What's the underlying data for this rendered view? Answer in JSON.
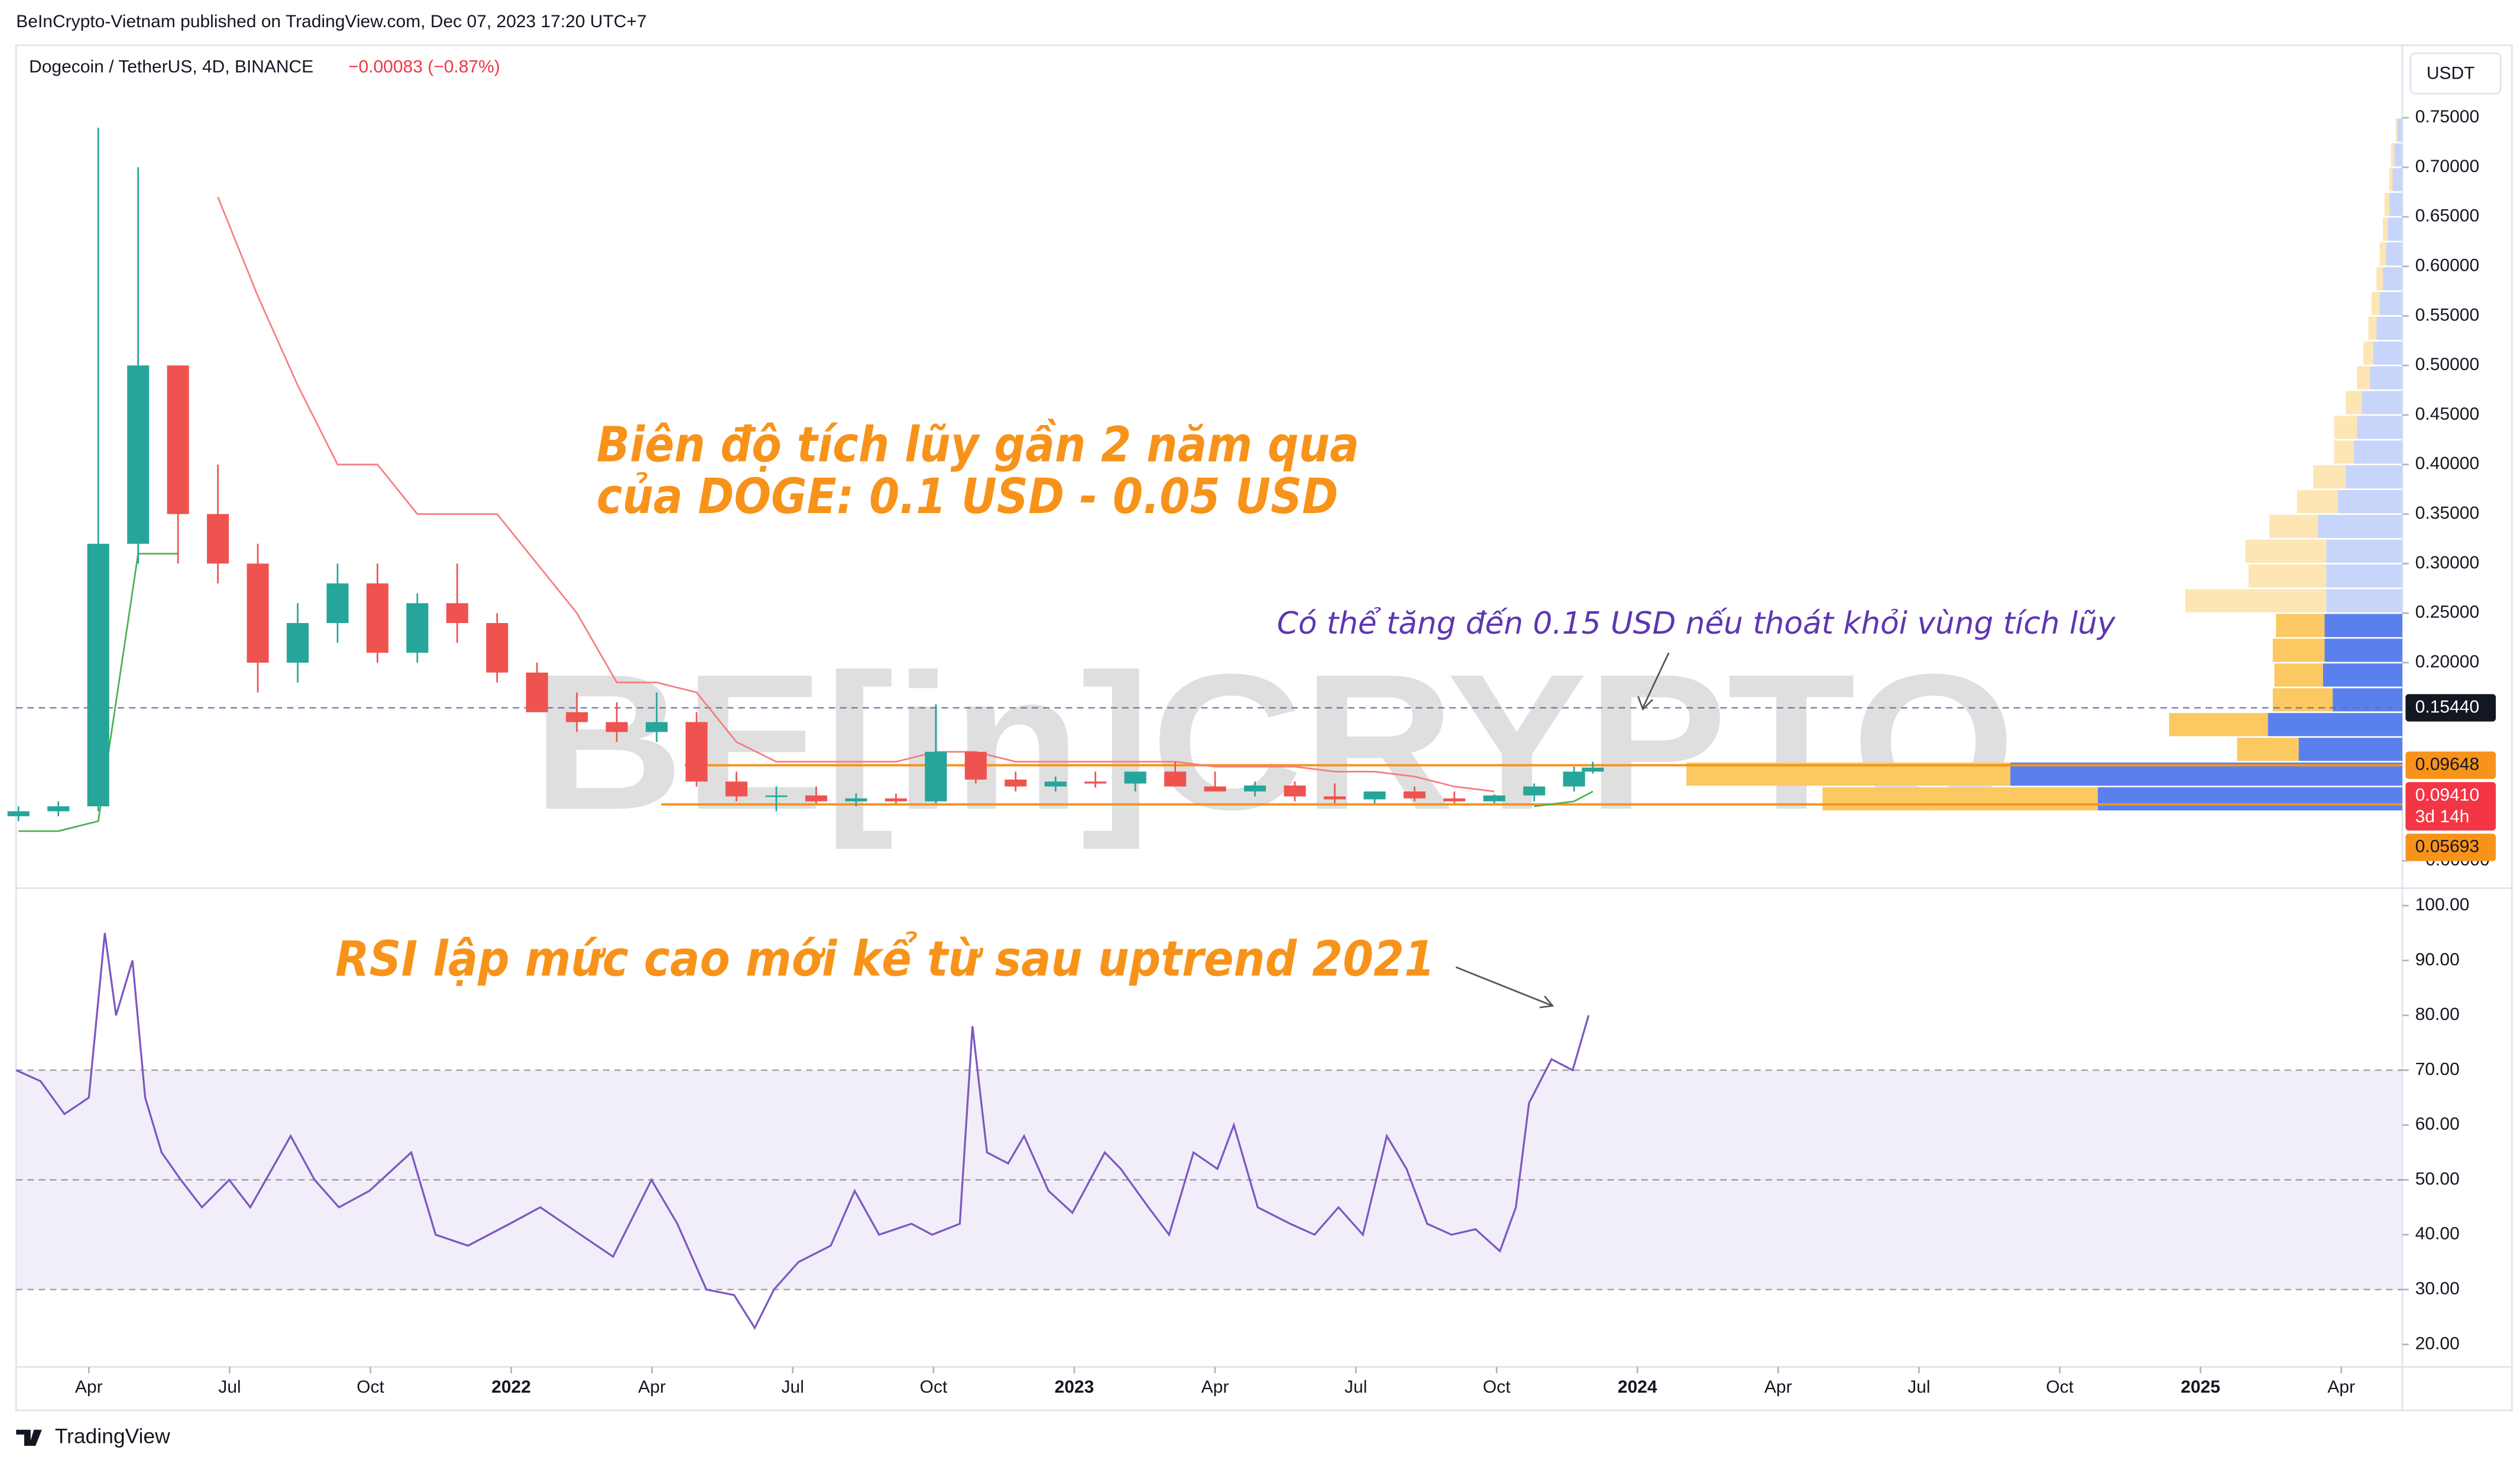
{
  "header": {
    "published": "BeInCrypto-Vietnam published on TradingView.com, Dec 07, 2023 17:20 UTC+7",
    "symbol": "Dogecoin / TetherUS, 4D, BINANCE",
    "change": "−0.00083 (−0.87%)",
    "currency": "USDT",
    "footer": "TradingView",
    "watermark": "BE[in]CRYPTO"
  },
  "annotations": [
    "Biên độ tích lũy gần 2 năm qua",
    "của DOGE: 0.1 USD - 0.05 USD",
    "Có thể tăng đến 0.15 USD nếu thoát khỏi vùng tích lũy",
    "RSI lập mức cao mới kể từ sau uptrend 2021"
  ],
  "chart_data": [
    {
      "type": "candlestick",
      "x": [
        1.5,
        2.35,
        3.2,
        4.05,
        4.9,
        5.75,
        6.6,
        7.45,
        8.3,
        9.15,
        10,
        10.85,
        11.7,
        12.55,
        13.4,
        14.25,
        15.1,
        15.95,
        16.8,
        17.65,
        18.5,
        19.35,
        20.2,
        21.05,
        21.9,
        22.75,
        23.6,
        24.45,
        25.3,
        26.15,
        27,
        27.85,
        28.7,
        29.55,
        30.4,
        31.25,
        32.1,
        32.95,
        33.8,
        34.65,
        35.05
      ],
      "open": [
        0.045,
        0.05,
        0.055,
        0.32,
        0.5,
        0.35,
        0.3,
        0.2,
        0.24,
        0.28,
        0.21,
        0.26,
        0.24,
        0.19,
        0.15,
        0.14,
        0.13,
        0.14,
        0.08,
        0.065,
        0.066,
        0.06,
        0.063,
        0.06,
        0.11,
        0.082,
        0.075,
        0.08,
        0.078,
        0.09,
        0.075,
        0.07,
        0.076,
        0.065,
        0.062,
        0.07,
        0.063,
        0.06,
        0.066,
        0.075,
        0.09
      ],
      "high": [
        0.055,
        0.06,
        0.74,
        0.7,
        0.5,
        0.4,
        0.32,
        0.26,
        0.3,
        0.3,
        0.27,
        0.3,
        0.25,
        0.2,
        0.17,
        0.16,
        0.17,
        0.15,
        0.09,
        0.075,
        0.075,
        0.068,
        0.068,
        0.158,
        0.11,
        0.09,
        0.085,
        0.09,
        0.09,
        0.1,
        0.09,
        0.08,
        0.08,
        0.078,
        0.07,
        0.075,
        0.07,
        0.067,
        0.078,
        0.095,
        0.1
      ],
      "low": [
        0.04,
        0.045,
        0.05,
        0.3,
        0.3,
        0.28,
        0.17,
        0.18,
        0.22,
        0.2,
        0.2,
        0.22,
        0.18,
        0.15,
        0.13,
        0.12,
        0.12,
        0.075,
        0.06,
        0.05,
        0.058,
        0.055,
        0.058,
        0.058,
        0.078,
        0.07,
        0.07,
        0.074,
        0.07,
        0.075,
        0.07,
        0.065,
        0.06,
        0.058,
        0.058,
        0.06,
        0.058,
        0.058,
        0.06,
        0.07,
        0.088
      ],
      "close": [
        0.05,
        0.055,
        0.32,
        0.5,
        0.35,
        0.3,
        0.2,
        0.24,
        0.28,
        0.21,
        0.26,
        0.24,
        0.19,
        0.15,
        0.14,
        0.13,
        0.14,
        0.08,
        0.065,
        0.066,
        0.06,
        0.063,
        0.06,
        0.11,
        0.082,
        0.075,
        0.08,
        0.078,
        0.09,
        0.075,
        0.07,
        0.076,
        0.065,
        0.062,
        0.07,
        0.063,
        0.06,
        0.066,
        0.075,
        0.09,
        0.0941
      ],
      "up_color": "#26a69a",
      "down_color": "#ef5350",
      "resistance_stop": [
        null,
        null,
        null,
        null,
        null,
        0.67,
        0.57,
        0.48,
        0.4,
        0.4,
        0.35,
        0.35,
        0.35,
        0.3,
        0.25,
        0.18,
        0.18,
        0.17,
        0.12,
        0.1,
        0.1,
        0.1,
        0.1,
        0.11,
        0.11,
        0.1,
        0.1,
        0.1,
        0.1,
        0.1,
        0.095,
        0.095,
        0.095,
        0.09,
        0.09,
        0.085,
        0.075,
        0.07,
        null,
        null,
        null
      ],
      "support_stop": [
        0.03,
        0.03,
        0.04,
        0.31,
        0.31,
        null,
        null,
        null,
        null,
        null,
        null,
        null,
        null,
        null,
        null,
        null,
        null,
        null,
        null,
        null,
        null,
        null,
        null,
        null,
        null,
        null,
        null,
        null,
        null,
        null,
        null,
        null,
        null,
        null,
        null,
        null,
        null,
        null,
        0.055,
        0.06,
        0.07
      ],
      "resistance_color": "#f77c80",
      "support_color": "#4caf50",
      "xlim": [
        1.45,
        52.3
      ],
      "ylim": [
        -0.026,
        0.82
      ],
      "yticks": [
        {
          "value": 0,
          "label": "−0.00000"
        },
        {
          "value": 0.2,
          "label": "0.20000"
        },
        {
          "value": 0.25,
          "label": "0.25000"
        },
        {
          "value": 0.3,
          "label": "0.30000"
        },
        {
          "value": 0.35,
          "label": "0.35000"
        },
        {
          "value": 0.4,
          "label": "0.40000"
        },
        {
          "value": 0.45,
          "label": "0.45000"
        },
        {
          "value": 0.5,
          "label": "0.50000"
        },
        {
          "value": 0.55,
          "label": "0.55000"
        },
        {
          "value": 0.6,
          "label": "0.60000"
        },
        {
          "value": 0.65,
          "label": "0.65000"
        },
        {
          "value": 0.7,
          "label": "0.70000"
        },
        {
          "value": 0.75,
          "label": "0.75000"
        }
      ],
      "levels": [
        {
          "value": 0.1544,
          "label": "0.15440",
          "color": "#131722",
          "line_color": "#6a6fa8",
          "dashed": true
        },
        {
          "value": 0.09648,
          "label": "0.09648",
          "color": "#f7931a",
          "line_color": "#f7931a",
          "from": 15.7
        },
        {
          "value": 0.05693,
          "label": "0.05693",
          "color": "#f7931a",
          "line_color": "#f7931a",
          "from": 15.2
        }
      ],
      "last_price": {
        "value": 0.0941,
        "label": "0.09410",
        "countdown": "3d 14h",
        "color": "#f23645"
      },
      "volume_profile": {
        "bins": [
          0.05,
          0.075,
          0.1,
          0.125,
          0.15,
          0.175,
          0.2,
          0.225,
          0.25,
          0.275,
          0.3,
          0.325,
          0.35,
          0.375,
          0.4,
          0.425,
          0.45,
          0.475,
          0.5,
          0.525,
          0.55,
          0.575,
          0.6,
          0.625,
          0.65,
          0.675,
          0.7,
          0.725,
          0.75
        ],
        "up": [
          188,
          242,
          64,
          83,
          43,
          49,
          48,
          48,
          47,
          47,
          47,
          52,
          40,
          35,
          30,
          28,
          25,
          20,
          18,
          16,
          14,
          12,
          10,
          9,
          8,
          6,
          5,
          3
        ],
        "down": [
          170,
          200,
          38,
          61,
          37,
          30,
          32,
          30,
          87,
          48,
          50,
          30,
          25,
          20,
          12,
          14,
          10,
          8,
          6,
          5,
          5,
          4,
          4,
          3,
          3,
          2,
          2,
          1
        ],
        "up_color": "#5a80ee",
        "down_color": "#fbc862",
        "up_light": "#c8d5fa",
        "down_light": "#fde6b4",
        "value_area": [
          0.05,
          0.25
        ]
      }
    },
    {
      "type": "line",
      "x": [
        1.45,
        1.97,
        2.48,
        3,
        3.34,
        3.58,
        3.93,
        4.2,
        4.55,
        4.96,
        5.41,
        5.99,
        6.44,
        7.3,
        7.81,
        8.33,
        8.98,
        9.87,
        10.39,
        11.08,
        11.97,
        12.62,
        13.48,
        14.17,
        14.99,
        15.54,
        16.16,
        16.75,
        17.19,
        17.6,
        18.12,
        18.81,
        19.32,
        19.84,
        20.53,
        20.97,
        21.56,
        21.83,
        22.14,
        22.59,
        22.93,
        23.45,
        23.96,
        24.65,
        24.99,
        25.58,
        26.02,
        26.54,
        27.05,
        27.4,
        27.91,
        28.6,
        29.12,
        29.63,
        30.15,
        30.66,
        31.08,
        31.52,
        32.04,
        32.55,
        33.07,
        33.41,
        33.69,
        34.17,
        34.62,
        34.96
      ],
      "values": [
        70,
        68,
        62,
        65,
        95,
        80,
        90,
        65,
        55,
        50,
        45,
        50,
        45,
        58,
        50,
        45,
        48,
        55,
        40,
        38,
        42,
        45,
        40,
        36,
        50,
        42,
        30,
        29,
        23,
        30,
        35,
        38,
        48,
        40,
        42,
        40,
        42,
        78,
        55,
        53,
        58,
        48,
        44,
        55,
        52,
        45,
        40,
        55,
        52,
        60,
        45,
        42,
        40,
        45,
        40,
        58,
        52,
        42,
        40,
        41,
        37,
        45,
        64,
        72,
        70,
        80
      ],
      "color": "#7e57c2",
      "band_color": "#ede7f6",
      "levels": [
        30,
        50,
        70
      ],
      "xlim": [
        1.45,
        52.3
      ],
      "ylim": [
        15.9,
        102.6
      ],
      "yticks": [
        {
          "value": 20,
          "label": "20.00"
        },
        {
          "value": 30,
          "label": "30.00"
        },
        {
          "value": 40,
          "label": "40.00"
        },
        {
          "value": 50,
          "label": "50.00"
        },
        {
          "value": 60,
          "label": "60.00"
        },
        {
          "value": 70,
          "label": "70.00"
        },
        {
          "value": 80,
          "label": "80.00"
        },
        {
          "value": 90,
          "label": "90.00"
        },
        {
          "value": 100,
          "label": "100.00"
        }
      ],
      "xticks": [
        {
          "value": 3,
          "label": "Apr"
        },
        {
          "value": 6,
          "label": "Jul"
        },
        {
          "value": 9,
          "label": "Oct"
        },
        {
          "value": 12,
          "label": "2022"
        },
        {
          "value": 15,
          "label": "Apr"
        },
        {
          "value": 18,
          "label": "Jul"
        },
        {
          "value": 21,
          "label": "Oct"
        },
        {
          "value": 24,
          "label": "2023"
        },
        {
          "value": 27,
          "label": "Apr"
        },
        {
          "value": 30,
          "label": "Jul"
        },
        {
          "value": 33,
          "label": "Oct"
        },
        {
          "value": 36,
          "label": "2024"
        },
        {
          "value": 39,
          "label": "Apr"
        },
        {
          "value": 42,
          "label": "Jul"
        },
        {
          "value": 45,
          "label": "Oct"
        },
        {
          "value": 48,
          "label": "2025"
        },
        {
          "value": 51,
          "label": "Apr"
        }
      ]
    }
  ]
}
